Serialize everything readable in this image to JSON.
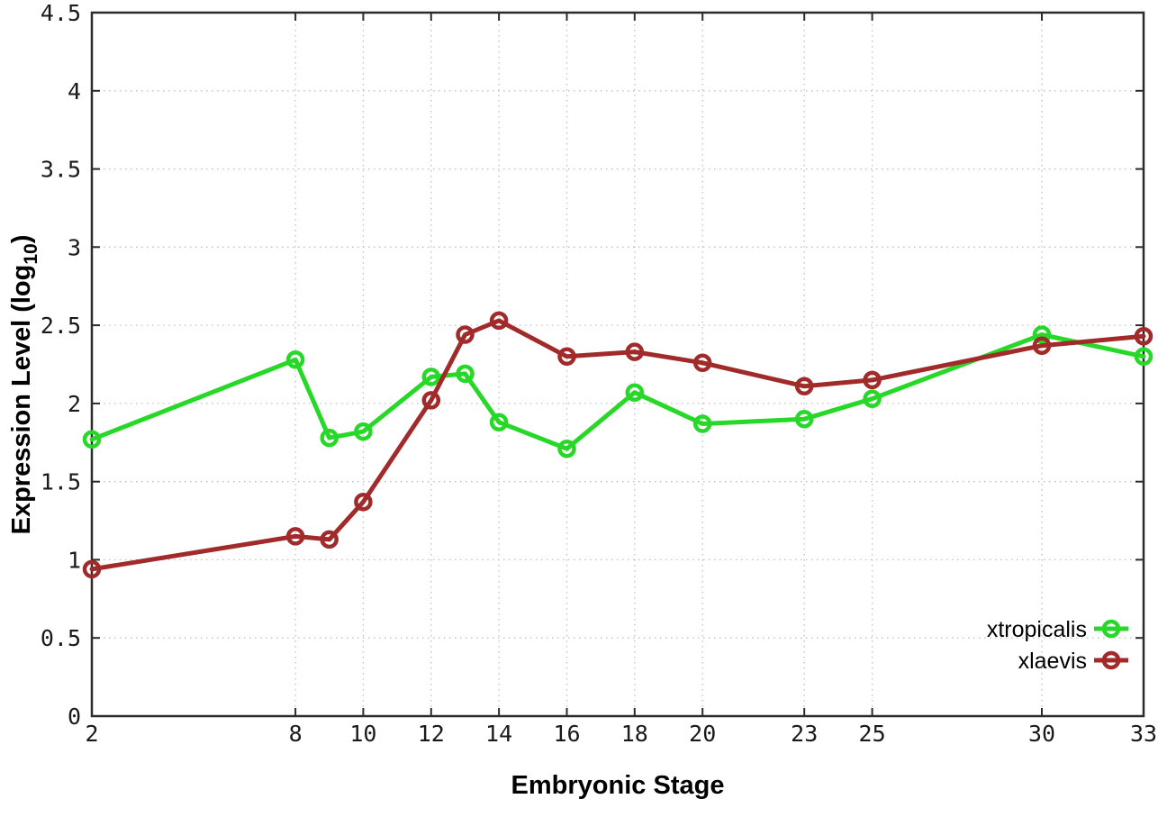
{
  "figure": {
    "background_color": "#ffffff",
    "border_color": "#2b2b2b",
    "grid_color": "#c0c0c0",
    "tick_label_color": "#1a1a1a"
  },
  "chart_data": {
    "type": "line",
    "title": "",
    "xlabel": "Embryonic Stage",
    "ylabel": "Expression Level (log10)",
    "ylabel_parts": {
      "main": "Expression Level (log",
      "sub": "10",
      "end": ")"
    },
    "xlim": [
      2,
      33
    ],
    "ylim": [
      0,
      4.5
    ],
    "x_ticks": [
      2,
      8,
      10,
      12,
      14,
      16,
      18,
      20,
      23,
      25,
      30,
      33
    ],
    "y_ticks": [
      0,
      0.5,
      1,
      1.5,
      2,
      2.5,
      3,
      3.5,
      4,
      4.5
    ],
    "grid": true,
    "legend_position": "bottom-right",
    "x": [
      2,
      8,
      9,
      10,
      12,
      13,
      14,
      16,
      18,
      20,
      23,
      25,
      30,
      33
    ],
    "series": [
      {
        "name": "xtropicalis",
        "color": "#28d828",
        "marker": "open-circle",
        "values": [
          1.77,
          2.28,
          1.78,
          1.82,
          2.17,
          2.19,
          1.88,
          1.71,
          2.07,
          1.87,
          1.9,
          2.03,
          2.44,
          2.3
        ]
      },
      {
        "name": "xlaevis",
        "color": "#a12a2a",
        "marker": "open-circle",
        "values": [
          0.94,
          1.15,
          1.13,
          1.37,
          2.02,
          2.44,
          2.53,
          2.3,
          2.33,
          2.26,
          2.11,
          2.15,
          2.37,
          2.43
        ]
      }
    ]
  }
}
